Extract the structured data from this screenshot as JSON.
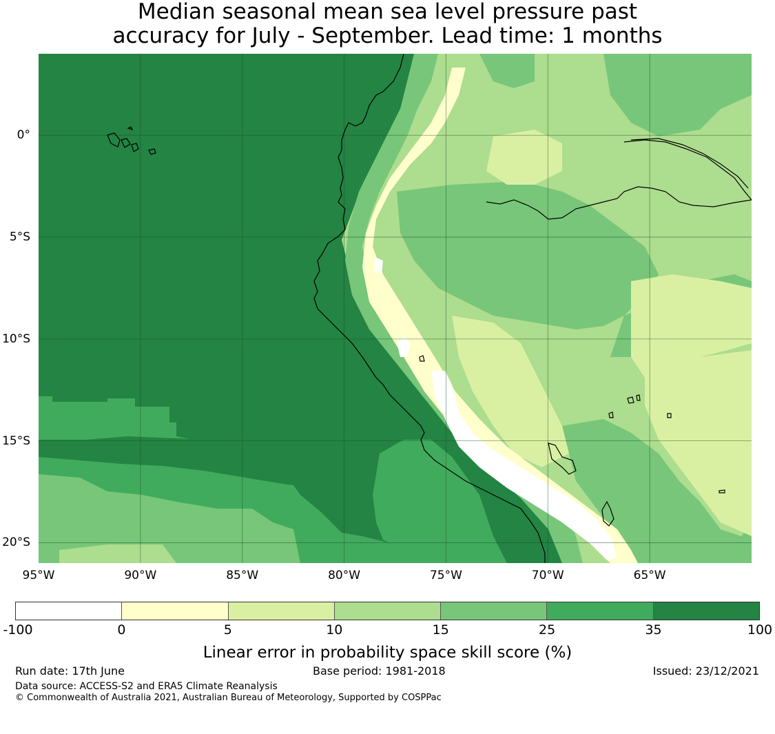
{
  "title_line1": "Median seasonal mean sea level pressure past",
  "title_line2": "accuracy for July - September. Lead time: 1 months",
  "map": {
    "lon_range": [
      -95,
      -60
    ],
    "lat_range": [
      -21,
      4
    ],
    "lat_labels": [
      "0°",
      "5°S",
      "10°S",
      "15°S",
      "20°S"
    ],
    "lat_values": [
      0,
      -5,
      -10,
      -15,
      -20
    ],
    "lon_labels": [
      "95°W",
      "90°W",
      "85°W",
      "80°W",
      "75°W",
      "70°W",
      "65°W"
    ],
    "lon_values": [
      -95,
      -90,
      -85,
      -80,
      -75,
      -70,
      -65
    ],
    "grid": true
  },
  "colorbar": {
    "bins": [
      {
        "from": -100,
        "to": 0,
        "color": "#ffffff"
      },
      {
        "from": 0,
        "to": 5,
        "color": "#ffffcc"
      },
      {
        "from": 5,
        "to": 10,
        "color": "#d9f0a3"
      },
      {
        "from": 10,
        "to": 15,
        "color": "#addd8e"
      },
      {
        "from": 15,
        "to": 25,
        "color": "#78c679"
      },
      {
        "from": 25,
        "to": 35,
        "color": "#41ab5d"
      },
      {
        "from": 35,
        "to": 100,
        "color": "#238443"
      }
    ],
    "ticks": [
      "-100",
      "0",
      "5",
      "10",
      "15",
      "25",
      "35",
      "100"
    ],
    "label": "Linear error in probability space skill score (%)"
  },
  "footer": {
    "run_date": "Run date: 17th June",
    "base_period": "Base period: 1981-2018",
    "issued": "Issued: 23/12/2021",
    "data_source": "Data source: ACCESS-S2 and ERA5 Climate Reanalysis",
    "copyright": "© Commonwealth of Australia 2021, Australian Bureau of Meteorology, Supported by COSPPac"
  }
}
